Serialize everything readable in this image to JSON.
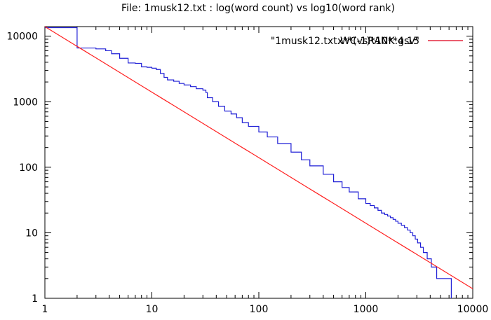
{
  "chart_data": {
    "type": "line",
    "title": "File: 1musk12.txt : log(word count) vs log10(word rank)",
    "xlabel": "",
    "ylabel": "",
    "x_scale": "log",
    "y_scale": "log",
    "xlim": [
      1,
      10000
    ],
    "ylim": [
      1,
      14000
    ],
    "x_ticks": [
      1,
      10,
      100,
      1000,
      10000
    ],
    "x_tick_labels": [
      "1",
      "10",
      "100",
      "1000",
      "10000"
    ],
    "y_ticks": [
      1,
      10,
      100,
      1000,
      10000
    ],
    "y_tick_labels": [
      "1",
      "10",
      "100",
      "1000",
      "10000"
    ],
    "grid": false,
    "legend_position": "top-right",
    "series": [
      {
        "name": "\"1musk12.txt.WCvsRANK.gsv\"",
        "color": "#1f1fd6",
        "step": true,
        "points": [
          [
            1,
            13500
          ],
          [
            2,
            6600
          ],
          [
            3,
            6400
          ],
          [
            3.7,
            6000
          ],
          [
            4.2,
            5400
          ],
          [
            5,
            4600
          ],
          [
            6,
            3900
          ],
          [
            7,
            3850
          ],
          [
            8,
            3400
          ],
          [
            9,
            3350
          ],
          [
            10,
            3250
          ],
          [
            11,
            3100
          ],
          [
            12,
            2700
          ],
          [
            13,
            2350
          ],
          [
            14,
            2150
          ],
          [
            16,
            2050
          ],
          [
            18,
            1900
          ],
          [
            20,
            1800
          ],
          [
            23,
            1700
          ],
          [
            26,
            1580
          ],
          [
            30,
            1500
          ],
          [
            32,
            1380
          ],
          [
            33,
            1150
          ],
          [
            37,
            1000
          ],
          [
            42,
            850
          ],
          [
            48,
            720
          ],
          [
            55,
            650
          ],
          [
            62,
            570
          ],
          [
            70,
            480
          ],
          [
            80,
            420
          ],
          [
            100,
            345
          ],
          [
            120,
            290
          ],
          [
            150,
            230
          ],
          [
            200,
            170
          ],
          [
            250,
            130
          ],
          [
            300,
            105
          ],
          [
            400,
            78
          ],
          [
            500,
            60
          ],
          [
            600,
            49
          ],
          [
            700,
            42
          ],
          [
            850,
            33
          ],
          [
            1000,
            28
          ],
          [
            1100,
            26
          ],
          [
            1200,
            24
          ],
          [
            1300,
            22
          ],
          [
            1400,
            20
          ],
          [
            1500,
            19
          ],
          [
            1600,
            18
          ],
          [
            1700,
            17
          ],
          [
            1800,
            16
          ],
          [
            1900,
            15
          ],
          [
            2000,
            14
          ],
          [
            2150,
            13
          ],
          [
            2300,
            12
          ],
          [
            2450,
            11
          ],
          [
            2600,
            10
          ],
          [
            2750,
            9
          ],
          [
            2900,
            8
          ],
          [
            3050,
            7
          ],
          [
            3250,
            6
          ],
          [
            3450,
            5
          ],
          [
            3750,
            4
          ],
          [
            4100,
            3
          ],
          [
            4600,
            2
          ],
          [
            6300,
            1
          ]
        ]
      },
      {
        "name": "x**(-1)*10**4.15",
        "color": "#ff1f1f",
        "function": "power",
        "coefficient": 14000,
        "exponent": -1,
        "x_range": [
          1,
          10000
        ]
      }
    ]
  }
}
